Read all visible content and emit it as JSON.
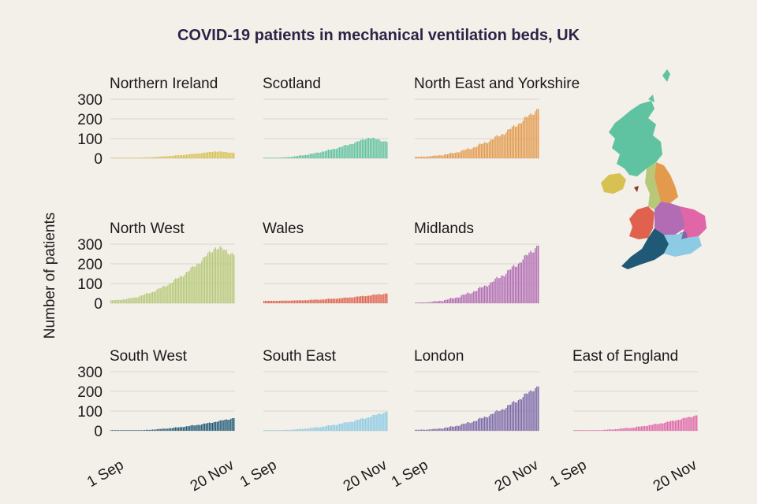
{
  "title": "COVID-19 patients in mechanical ventilation beds, UK",
  "chart_data": {
    "type": "bar",
    "title": "COVID-19 patients in mechanical ventilation beds, UK",
    "ylabel": "Number of patients",
    "xlabel": "",
    "x_ticks": [
      "1 Sep",
      "20 Nov"
    ],
    "y_ticks": [
      "0",
      "100",
      "200",
      "300"
    ],
    "ylim": [
      0,
      300
    ],
    "days": 81,
    "panels": [
      {
        "name": "Northern Ireland",
        "color": "#d7c153",
        "start": 1,
        "peak": 35,
        "end": 28,
        "shape": "hump"
      },
      {
        "name": "Scotland",
        "color": "#5fc2a0",
        "start": 1,
        "peak": 105,
        "end": 85,
        "shape": "hump"
      },
      {
        "name": "North East and Yorkshire",
        "color": "#e39a4d",
        "start": 8,
        "peak": 255,
        "end": 255,
        "shape": "grow"
      },
      {
        "name": "North West",
        "color": "#b7c978",
        "start": 15,
        "peak": 285,
        "end": 250,
        "shape": "hump"
      },
      {
        "name": "Wales",
        "color": "#e0624e",
        "start": 12,
        "peak": 55,
        "end": 50,
        "shape": "grow"
      },
      {
        "name": "Midlands",
        "color": "#b16cb4",
        "start": 3,
        "peak": 298,
        "end": 298,
        "shape": "grow"
      },
      {
        "name": "South West",
        "color": "#1f5975",
        "start": 0,
        "peak": 65,
        "end": 65,
        "shape": "grow"
      },
      {
        "name": "South East",
        "color": "#8dcbe4",
        "start": 2,
        "peak": 98,
        "end": 98,
        "shape": "grow"
      },
      {
        "name": "London",
        "color": "#7b68a8",
        "start": 5,
        "peak": 230,
        "end": 230,
        "shape": "grow"
      },
      {
        "name": "East of England",
        "color": "#e066a8",
        "start": 1,
        "peak": 80,
        "end": 80,
        "shape": "grow"
      }
    ]
  },
  "map_regions": [
    {
      "name": "Scotland",
      "color": "#5fc2a0"
    },
    {
      "name": "Northern Ireland",
      "color": "#d7c153"
    },
    {
      "name": "North East and Yorkshire",
      "color": "#e39a4d"
    },
    {
      "name": "North West",
      "color": "#b7c978"
    },
    {
      "name": "Wales",
      "color": "#e0624e"
    },
    {
      "name": "Midlands",
      "color": "#b16cb4"
    },
    {
      "name": "East of England",
      "color": "#e066a8"
    },
    {
      "name": "London",
      "color": "#7b68a8"
    },
    {
      "name": "South West",
      "color": "#1f5975"
    },
    {
      "name": "South East",
      "color": "#8dcbe4"
    }
  ]
}
